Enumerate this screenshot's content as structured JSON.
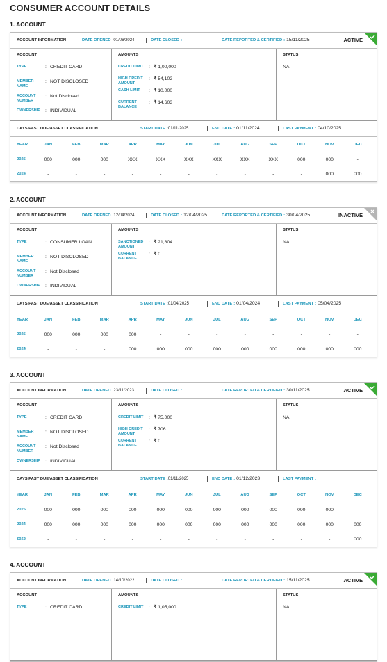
{
  "title": "CONSUMER ACCOUNT DETAILS",
  "labels": {
    "account_information": "ACCOUNT INFORMATION",
    "date_opened": "DATE OPENED",
    "date_closed": "DATE CLOSED",
    "date_reported": "DATE REPORTED & CERTIFIED",
    "separator": ":",
    "account": "ACCOUNT",
    "amounts": "AMOUNTS",
    "status": "STATUS",
    "type": "TYPE",
    "member_name": "MEMBER NAME",
    "account_number": "ACCOUNT NUMBER",
    "ownership": "OWNERSHIP",
    "dpd": "DAYS PAST DUE/ASSET CLASSIFICATION",
    "start_date": "START DATE",
    "end_date": "END DATE",
    "last_payment": "LAST PAYMENT",
    "year": "YEAR",
    "months": [
      "JAN",
      "FEB",
      "MAR",
      "APR",
      "MAY",
      "JUN",
      "JUL",
      "AUG",
      "SEP",
      "OCT",
      "NOV",
      "DEC"
    ]
  },
  "accounts": [
    {
      "heading": "1. ACCOUNT",
      "date_opened": "01/06/2024",
      "date_reported": "15/11/2025",
      "badge": {
        "text": "ACTIVE",
        "color": "#3aaa35",
        "icon": "check"
      },
      "type": "CREDIT CARD",
      "member_name": "NOT DISCLOSED",
      "account_number": "Not Disclosed",
      "ownership": "INDIVIDUAL",
      "amounts": [
        {
          "label": "CREDIT LIMIT",
          "value": "₹ 1,00,000"
        },
        {
          "label": "HIGH CREDIT AMOUNT",
          "value": "₹ 54,102"
        },
        {
          "label": "CASH LIMIT",
          "value": "₹ 10,000"
        },
        {
          "label": "CURRENT BALANCE",
          "value": "₹ 14,603"
        }
      ],
      "status": "NA",
      "dpd": {
        "start_date": "01/11/2025",
        "end_date": "01/11/2024",
        "last_payment": "04/10/2025"
      },
      "history": [
        {
          "year": "2025",
          "months": [
            "000",
            "000",
            "000",
            "XXX",
            "XXX",
            "XXX",
            "XXX",
            "XXX",
            "XXX",
            "000",
            "000",
            "-"
          ]
        },
        {
          "year": "2024",
          "months": [
            "-",
            "-",
            "-",
            "-",
            "-",
            "-",
            "-",
            "-",
            "-",
            "-",
            "000",
            "000"
          ]
        }
      ]
    },
    {
      "heading": "2. ACCOUNT",
      "date_opened": "12/04/2024",
      "date_closed": "12/04/2025",
      "date_reported": "30/04/2025",
      "badge": {
        "text": "INACTIVE",
        "color": "#b5b5b5",
        "icon": "cross"
      },
      "type": "CONSUMER LOAN",
      "member_name": "NOT DISCLOSED",
      "account_number": "Not Disclosed",
      "ownership": "INDIVIDUAL",
      "amounts": [
        {
          "label": "SANCTIONED AMOUNT",
          "value": "₹ 21,804"
        },
        {
          "label": "CURRENT BALANCE",
          "value": "₹ 0"
        }
      ],
      "status": "NA",
      "dpd": {
        "start_date": "01/04/2025",
        "end_date": "01/04/2024",
        "last_payment": "05/04/2025"
      },
      "history": [
        {
          "year": "2025",
          "months": [
            "000",
            "000",
            "000",
            "000",
            "-",
            "-",
            "-",
            "-",
            "-",
            "-",
            "-",
            "-"
          ]
        },
        {
          "year": "2024",
          "months": [
            "-",
            "-",
            "-",
            "000",
            "000",
            "000",
            "000",
            "000",
            "000",
            "000",
            "000",
            "000"
          ]
        }
      ]
    },
    {
      "heading": "3. ACCOUNT",
      "date_opened": "23/11/2023",
      "date_reported": "30/11/2025",
      "badge": {
        "text": "ACTIVE",
        "color": "#3aaa35",
        "icon": "check"
      },
      "type": "CREDIT CARD",
      "member_name": "NOT DISCLOSED",
      "account_number": "Not Disclosed",
      "ownership": "INDIVIDUAL",
      "amounts": [
        {
          "label": "CREDIT LIMIT",
          "value": "₹ 75,000"
        },
        {
          "label": "HIGH CREDIT AMOUNT",
          "value": "₹ 706"
        },
        {
          "label": "CURRENT BALANCE",
          "value": "₹ 0"
        }
      ],
      "status": "NA",
      "dpd": {
        "start_date": "01/11/2025",
        "end_date": "01/12/2023"
      },
      "history": [
        {
          "year": "2025",
          "months": [
            "000",
            "000",
            "000",
            "000",
            "000",
            "000",
            "000",
            "000",
            "000",
            "000",
            "000",
            "-"
          ]
        },
        {
          "year": "2024",
          "months": [
            "000",
            "000",
            "000",
            "000",
            "000",
            "000",
            "000",
            "000",
            "000",
            "000",
            "000",
            "000"
          ]
        },
        {
          "year": "2023",
          "months": [
            "-",
            "-",
            "-",
            "-",
            "-",
            "-",
            "-",
            "-",
            "-",
            "-",
            "-",
            "000"
          ]
        }
      ]
    },
    {
      "heading": "4. ACCOUNT",
      "date_opened": "14/10/2022",
      "date_reported": "15/11/2025",
      "badge": {
        "text": "ACTIVE",
        "color": "#3aaa35",
        "icon": "check"
      },
      "type": "CREDIT CARD",
      "amounts": [
        {
          "label": "CREDIT LIMIT",
          "value": "₹ 1,05,000"
        }
      ],
      "status": "NA"
    }
  ]
}
